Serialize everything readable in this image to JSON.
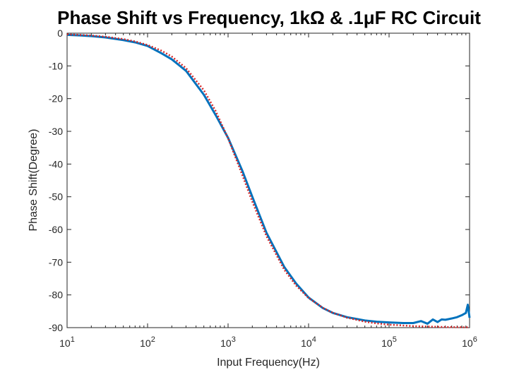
{
  "chart_data": {
    "type": "line",
    "title": "Phase Shift vs Frequency, 1kΩ & .1μF RC Circuit",
    "xlabel": "Input Frequency(Hz)",
    "ylabel": "Phase Shift(Degree)",
    "xscale": "log",
    "xlim": [
      10,
      1000000
    ],
    "ylim": [
      -90,
      0
    ],
    "x_ticks": [
      10,
      100,
      1000,
      10000,
      100000,
      1000000
    ],
    "x_tick_labels": [
      {
        "base": "10",
        "exp": "1"
      },
      {
        "base": "10",
        "exp": "2"
      },
      {
        "base": "10",
        "exp": "3"
      },
      {
        "base": "10",
        "exp": "4"
      },
      {
        "base": "10",
        "exp": "5"
      },
      {
        "base": "10",
        "exp": "6"
      }
    ],
    "y_ticks": [
      0,
      -10,
      -20,
      -30,
      -40,
      -50,
      -60,
      -70,
      -80,
      -90
    ],
    "y_tick_labels": [
      "0",
      "-10",
      "-20",
      "-30",
      "-40",
      "-50",
      "-60",
      "-70",
      "-80",
      "-90"
    ],
    "grid": false,
    "box": true,
    "series": [
      {
        "color": "#0072BD",
        "style": "solid",
        "x": [
          10,
          15,
          20,
          30,
          50,
          70,
          100,
          150,
          200,
          300,
          500,
          700,
          1000,
          1500,
          2000,
          3000,
          5000,
          7000,
          10000,
          15000,
          20000,
          30000,
          50000,
          70000,
          100000,
          150000,
          200000,
          250000,
          300000,
          350000,
          400000,
          450000,
          500000,
          600000,
          700000,
          800000,
          900000,
          950000,
          1000000
        ],
        "y": [
          -0.5,
          -0.7,
          -0.9,
          -1.3,
          -2.1,
          -2.8,
          -3.9,
          -6.2,
          -8.0,
          -11.5,
          -18.8,
          -25.0,
          -32.0,
          -42.0,
          -50.0,
          -61.0,
          -71.5,
          -76.5,
          -80.8,
          -84.0,
          -85.5,
          -86.8,
          -87.8,
          -88.2,
          -88.4,
          -88.6,
          -88.6,
          -88.0,
          -88.8,
          -87.5,
          -88.3,
          -87.5,
          -87.6,
          -87.2,
          -86.8,
          -86.2,
          -85.5,
          -83.0,
          -87.0
        ]
      },
      {
        "color": "#D62728",
        "style": "dotted",
        "x": [
          10,
          15,
          20,
          30,
          50,
          70,
          100,
          150,
          200,
          300,
          500,
          700,
          1000,
          1500,
          2000,
          3000,
          5000,
          7000,
          10000,
          15000,
          20000,
          30000,
          50000,
          70000,
          100000,
          200000,
          500000,
          1000000
        ],
        "y": [
          -0.36,
          -0.54,
          -0.72,
          -1.08,
          -1.8,
          -2.52,
          -3.6,
          -5.38,
          -7.15,
          -10.66,
          -17.44,
          -23.74,
          -32.14,
          -43.3,
          -51.49,
          -62.05,
          -72.34,
          -77.14,
          -80.96,
          -83.92,
          -85.45,
          -86.96,
          -88.18,
          -88.7,
          -89.09,
          -89.54,
          -89.82,
          -89.91
        ]
      }
    ]
  }
}
